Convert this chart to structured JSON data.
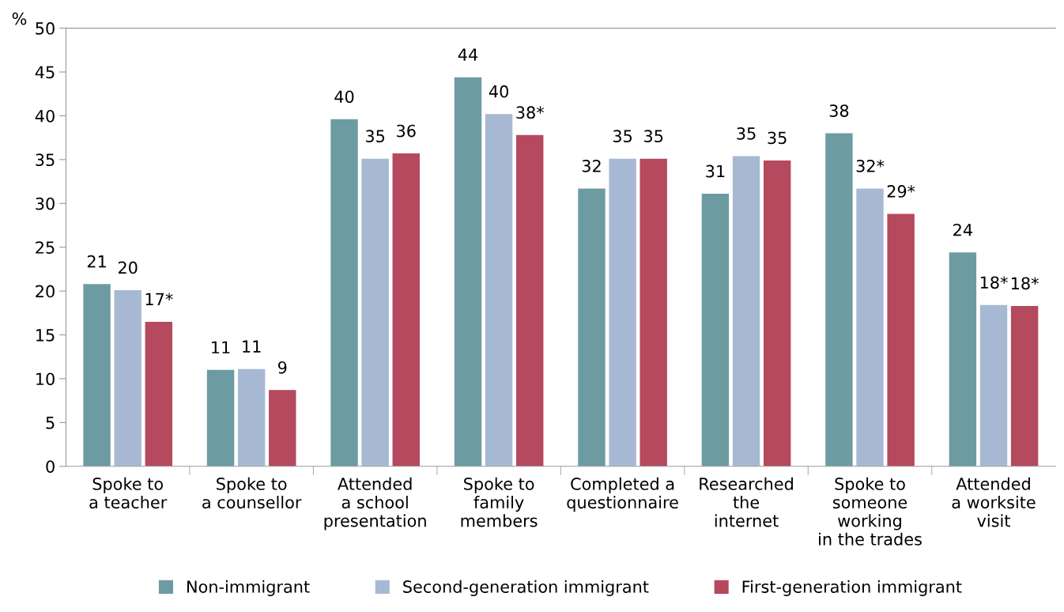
{
  "chart_data": {
    "type": "bar",
    "ylabel": "%",
    "categories": [
      "Spoke to\na teacher",
      "Spoke to\na counsellor",
      "Attended\na school\npresentation",
      "Spoke to\nfamily\nmembers",
      "Completed a\nquestionnaire",
      "Researched\nthe\ninternet",
      "Spoke to\nsomeone\nworking\nin the trades",
      "Attended\na worksite\nvisit"
    ],
    "series": [
      {
        "name": "Non-immigrant",
        "color": "#6d9ba2",
        "values": [
          20.8,
          11.0,
          39.6,
          44.4,
          31.7,
          31.1,
          38.0,
          24.4
        ],
        "value_labels": [
          "21",
          "11",
          "40",
          "44",
          "32",
          "31",
          "38",
          "24"
        ]
      },
      {
        "name": "Second-generation immigrant",
        "color": "#a7b9d2",
        "values": [
          20.1,
          11.1,
          35.1,
          40.2,
          35.1,
          35.4,
          31.7,
          18.4
        ],
        "value_labels": [
          "20",
          "11",
          "35",
          "40",
          "35",
          "35",
          "32*",
          "18*"
        ]
      },
      {
        "name": "First-generation immigrant",
        "color": "#b5495d",
        "values": [
          16.5,
          8.7,
          35.7,
          37.8,
          35.1,
          34.9,
          28.8,
          18.3
        ],
        "value_labels": [
          "17*",
          "9",
          "36",
          "38*",
          "35",
          "35",
          "29*",
          "18*"
        ]
      }
    ],
    "ylim": [
      0,
      50
    ],
    "yticks": [
      0,
      5,
      10,
      15,
      20,
      25,
      30,
      35,
      40,
      45,
      50
    ],
    "grid": false,
    "legend": "bottom"
  }
}
